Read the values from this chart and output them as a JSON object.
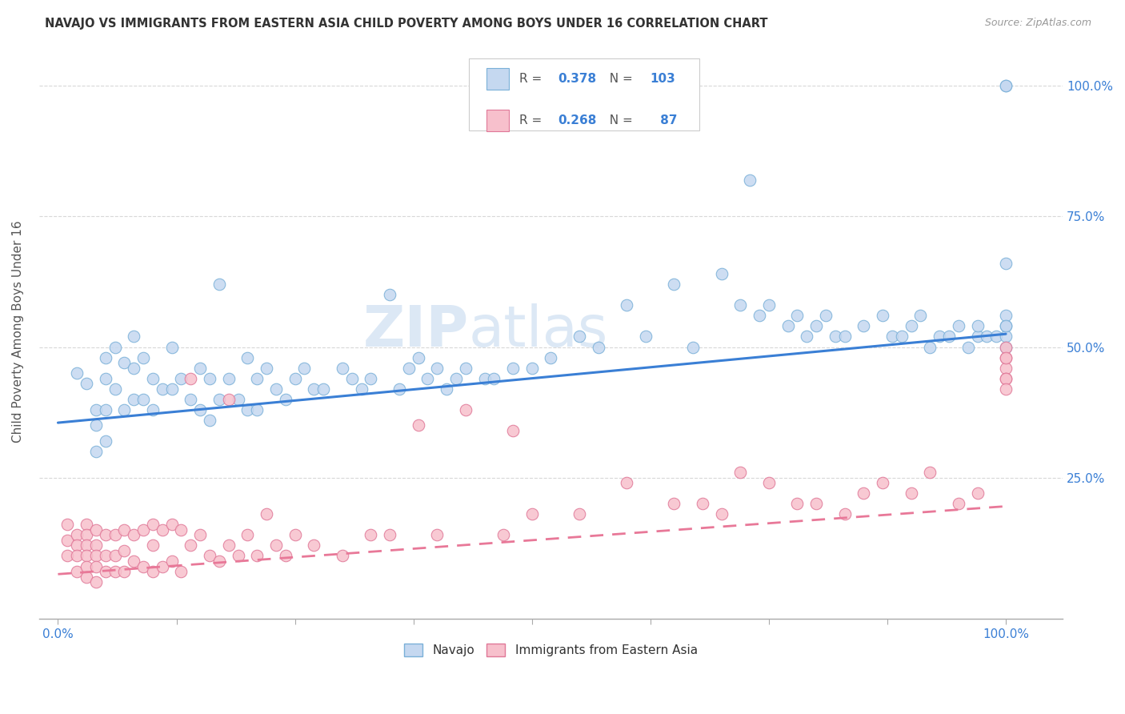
{
  "title": "NAVAJO VS IMMIGRANTS FROM EASTERN ASIA CHILD POVERTY AMONG BOYS UNDER 16 CORRELATION CHART",
  "source": "Source: ZipAtlas.com",
  "ylabel": "Child Poverty Among Boys Under 16",
  "navajo_color": "#c5d8f0",
  "navajo_edge_color": "#7ab0d8",
  "eastern_asia_color": "#f7c0cc",
  "eastern_asia_edge_color": "#e07898",
  "navajo_line_color": "#3a7fd5",
  "eastern_asia_line_color": "#e87898",
  "background_color": "#ffffff",
  "grid_color": "#d8d8d8",
  "tick_label_color": "#3a7fd5",
  "title_color": "#333333",
  "source_color": "#999999",
  "ylabel_color": "#555555",
  "watermark_color": "#dce8f5",
  "legend_box_color": "#eeeeee",
  "stat_label_color": "#555555",
  "stat_value_color": "#3a7fd5",
  "ylim_min": -0.02,
  "ylim_max": 1.08,
  "xlim_min": -0.02,
  "xlim_max": 1.06,
  "navajo_line_x0": 0.0,
  "navajo_line_y0": 0.355,
  "navajo_line_x1": 1.0,
  "navajo_line_y1": 0.525,
  "eastern_line_x0": 0.0,
  "eastern_line_y0": 0.065,
  "eastern_line_x1": 1.0,
  "eastern_line_y1": 0.195,
  "R_navajo": 0.378,
  "N_navajo": 103,
  "R_eastern": 0.268,
  "N_eastern": 87,
  "navajo_x": [
    0.02,
    0.03,
    0.04,
    0.04,
    0.04,
    0.05,
    0.05,
    0.05,
    0.05,
    0.06,
    0.06,
    0.07,
    0.07,
    0.08,
    0.08,
    0.08,
    0.09,
    0.09,
    0.1,
    0.1,
    0.11,
    0.12,
    0.12,
    0.13,
    0.14,
    0.15,
    0.15,
    0.16,
    0.16,
    0.17,
    0.17,
    0.18,
    0.19,
    0.2,
    0.2,
    0.21,
    0.21,
    0.22,
    0.23,
    0.24,
    0.25,
    0.26,
    0.27,
    0.28,
    0.3,
    0.31,
    0.32,
    0.33,
    0.35,
    0.36,
    0.37,
    0.38,
    0.39,
    0.4,
    0.41,
    0.42,
    0.43,
    0.45,
    0.46,
    0.48,
    0.5,
    0.52,
    0.55,
    0.57,
    0.6,
    0.62,
    0.65,
    0.67,
    0.7,
    0.72,
    0.73,
    0.74,
    0.75,
    0.77,
    0.78,
    0.79,
    0.8,
    0.81,
    0.82,
    0.83,
    0.85,
    0.87,
    0.88,
    0.89,
    0.9,
    0.91,
    0.92,
    0.93,
    0.94,
    0.95,
    0.96,
    0.97,
    0.97,
    0.98,
    0.99,
    1.0,
    1.0,
    1.0,
    1.0,
    1.0,
    1.0,
    1.0,
    1.0
  ],
  "navajo_y": [
    0.45,
    0.43,
    0.38,
    0.35,
    0.3,
    0.48,
    0.44,
    0.38,
    0.32,
    0.5,
    0.42,
    0.47,
    0.38,
    0.52,
    0.46,
    0.4,
    0.48,
    0.4,
    0.44,
    0.38,
    0.42,
    0.5,
    0.42,
    0.44,
    0.4,
    0.46,
    0.38,
    0.44,
    0.36,
    0.62,
    0.4,
    0.44,
    0.4,
    0.48,
    0.38,
    0.44,
    0.38,
    0.46,
    0.42,
    0.4,
    0.44,
    0.46,
    0.42,
    0.42,
    0.46,
    0.44,
    0.42,
    0.44,
    0.6,
    0.42,
    0.46,
    0.48,
    0.44,
    0.46,
    0.42,
    0.44,
    0.46,
    0.44,
    0.44,
    0.46,
    0.46,
    0.48,
    0.52,
    0.5,
    0.58,
    0.52,
    0.62,
    0.5,
    0.64,
    0.58,
    0.82,
    0.56,
    0.58,
    0.54,
    0.56,
    0.52,
    0.54,
    0.56,
    0.52,
    0.52,
    0.54,
    0.56,
    0.52,
    0.52,
    0.54,
    0.56,
    0.5,
    0.52,
    0.52,
    0.54,
    0.5,
    0.52,
    0.54,
    0.52,
    0.52,
    1.0,
    1.0,
    0.66,
    0.54,
    0.52,
    0.5,
    0.56,
    0.54
  ],
  "eastern_x": [
    0.01,
    0.01,
    0.01,
    0.02,
    0.02,
    0.02,
    0.02,
    0.03,
    0.03,
    0.03,
    0.03,
    0.03,
    0.03,
    0.04,
    0.04,
    0.04,
    0.04,
    0.04,
    0.05,
    0.05,
    0.05,
    0.06,
    0.06,
    0.06,
    0.07,
    0.07,
    0.07,
    0.08,
    0.08,
    0.09,
    0.09,
    0.1,
    0.1,
    0.1,
    0.11,
    0.11,
    0.12,
    0.12,
    0.13,
    0.13,
    0.14,
    0.14,
    0.15,
    0.16,
    0.17,
    0.18,
    0.18,
    0.19,
    0.2,
    0.21,
    0.22,
    0.23,
    0.24,
    0.25,
    0.27,
    0.3,
    0.33,
    0.35,
    0.38,
    0.4,
    0.43,
    0.47,
    0.48,
    0.5,
    0.55,
    0.6,
    0.65,
    0.68,
    0.7,
    0.72,
    0.75,
    0.78,
    0.8,
    0.83,
    0.85,
    0.87,
    0.9,
    0.92,
    0.95,
    0.97,
    1.0,
    1.0,
    1.0,
    1.0,
    1.0,
    1.0,
    1.0
  ],
  "eastern_y": [
    0.16,
    0.13,
    0.1,
    0.14,
    0.12,
    0.1,
    0.07,
    0.16,
    0.14,
    0.12,
    0.1,
    0.08,
    0.06,
    0.15,
    0.12,
    0.1,
    0.08,
    0.05,
    0.14,
    0.1,
    0.07,
    0.14,
    0.1,
    0.07,
    0.15,
    0.11,
    0.07,
    0.14,
    0.09,
    0.15,
    0.08,
    0.16,
    0.12,
    0.07,
    0.15,
    0.08,
    0.16,
    0.09,
    0.15,
    0.07,
    0.44,
    0.12,
    0.14,
    0.1,
    0.09,
    0.4,
    0.12,
    0.1,
    0.14,
    0.1,
    0.18,
    0.12,
    0.1,
    0.14,
    0.12,
    0.1,
    0.14,
    0.14,
    0.35,
    0.14,
    0.38,
    0.14,
    0.34,
    0.18,
    0.18,
    0.24,
    0.2,
    0.2,
    0.18,
    0.26,
    0.24,
    0.2,
    0.2,
    0.18,
    0.22,
    0.24,
    0.22,
    0.26,
    0.2,
    0.22,
    0.48,
    0.46,
    0.5,
    0.44,
    0.44,
    0.48,
    0.42
  ]
}
